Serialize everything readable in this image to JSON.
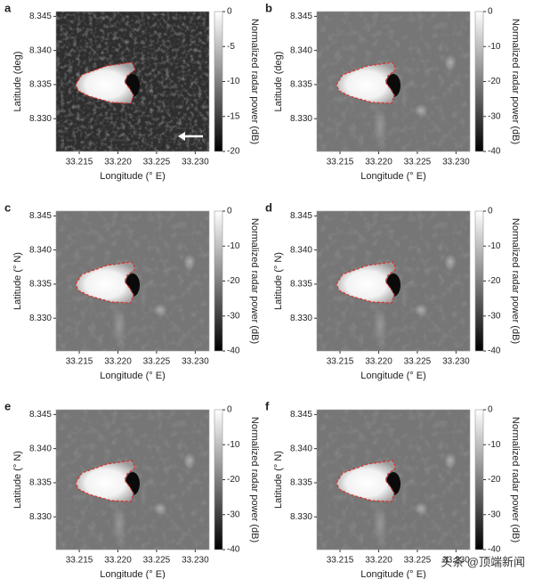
{
  "chart_data": [
    {
      "type": "heatmap",
      "label": "a",
      "xlabel": "Longitude (° E)",
      "ylabel": "Latitude (deg)",
      "colorbar_label": "Normalized radar power (dB)",
      "xlim": [
        33.212,
        33.2318
      ],
      "ylim": [
        8.3252,
        8.3457
      ],
      "xticks": [
        33.215,
        {
          "value": 33.22,
          "label": "33.220"
        },
        33.225,
        {
          "value": 33.23,
          "label": "33.230"
        }
      ],
      "yticks": [
        8.345,
        {
          "value": 8.34,
          "label": "8.340"
        },
        8.335,
        {
          "value": 8.33,
          "label": "8.330"
        }
      ],
      "clim": [
        -20,
        0
      ],
      "cticks": [
        0,
        -5,
        -10,
        -15,
        -20
      ]
    },
    {
      "type": "heatmap",
      "label": "b",
      "xlabel": "Longitude (° E)",
      "ylabel": "Latitude (deg)",
      "colorbar_label": "Normalized radar power (dB)",
      "xlim": [
        33.212,
        33.2318
      ],
      "ylim": [
        8.3252,
        8.3457
      ],
      "xticks": [
        33.215,
        {
          "value": 33.22,
          "label": "33.220"
        },
        33.225,
        {
          "value": 33.23,
          "label": "33.230"
        }
      ],
      "yticks": [
        8.345,
        {
          "value": 8.34,
          "label": "8.340"
        },
        8.335,
        {
          "value": 8.33,
          "label": "8.330"
        }
      ],
      "clim": [
        -40,
        0
      ],
      "cticks": [
        0,
        -10,
        -20,
        -30,
        -40
      ]
    },
    {
      "type": "heatmap",
      "label": "c",
      "xlabel": "Longitude (° E)",
      "ylabel": "Latitude (° N)",
      "colorbar_label": "Normalized radar power (dB)",
      "xlim": [
        33.212,
        33.2318
      ],
      "ylim": [
        8.3252,
        8.3457
      ],
      "xticks": [
        33.215,
        {
          "value": 33.22,
          "label": "33.220"
        },
        33.225,
        {
          "value": 33.23,
          "label": "33.230"
        }
      ],
      "yticks": [
        8.345,
        {
          "value": 8.34,
          "label": "8.340"
        },
        8.335,
        {
          "value": 8.33,
          "label": "8.330"
        }
      ],
      "clim": [
        -40,
        0
      ],
      "cticks": [
        0,
        -10,
        -20,
        -30,
        -40
      ]
    },
    {
      "type": "heatmap",
      "label": "d",
      "xlabel": "Longitude (° E)",
      "ylabel": "Latitude (° N)",
      "colorbar_label": "Normalized radar power (dB)",
      "xlim": [
        33.212,
        33.2318
      ],
      "ylim": [
        8.3252,
        8.3457
      ],
      "xticks": [
        33.215,
        {
          "value": 33.22,
          "label": "33.220"
        },
        33.225,
        {
          "value": 33.23,
          "label": "33.230"
        }
      ],
      "yticks": [
        8.345,
        {
          "value": 8.34,
          "label": "8.340"
        },
        8.335,
        {
          "value": 8.33,
          "label": "8.330"
        }
      ],
      "clim": [
        -40,
        0
      ],
      "cticks": [
        0,
        -10,
        -20,
        -30,
        -40
      ]
    },
    {
      "type": "heatmap",
      "label": "e",
      "xlabel": "Longitude (° E)",
      "ylabel": "Latitude (° N)",
      "colorbar_label": "Normalized radar power (dB)",
      "xlim": [
        33.212,
        33.2318
      ],
      "ylim": [
        8.3252,
        8.3457
      ],
      "xticks": [
        33.215,
        {
          "value": 33.22,
          "label": "33.220"
        },
        33.225,
        {
          "value": 33.23,
          "label": "33.230"
        }
      ],
      "yticks": [
        8.345,
        {
          "value": 8.34,
          "label": "8.340"
        },
        8.335,
        {
          "value": 8.33,
          "label": "8.330"
        }
      ],
      "clim": [
        -40,
        0
      ],
      "cticks": [
        0,
        -10,
        -20,
        -30,
        -40
      ]
    },
    {
      "type": "heatmap",
      "label": "f",
      "xlabel": "Longitude (° E)",
      "ylabel": "Latitude (° N)",
      "colorbar_label": "Normalized radar power (dB)",
      "xlim": [
        33.212,
        33.2318
      ],
      "ylim": [
        8.3252,
        8.3457
      ],
      "xticks": [
        33.215,
        {
          "value": 33.22,
          "label": "33.220"
        },
        33.225,
        {
          "value": 33.23,
          "label": "33.230"
        }
      ],
      "yticks": [
        8.345,
        {
          "value": 8.34,
          "label": "8.340"
        },
        8.335,
        {
          "value": 8.33,
          "label": "8.330"
        }
      ],
      "clim": [
        -40,
        0
      ],
      "cticks": [
        0,
        -10,
        -20,
        -30,
        -40
      ]
    }
  ],
  "watermark": "头条 @顶端新闻"
}
